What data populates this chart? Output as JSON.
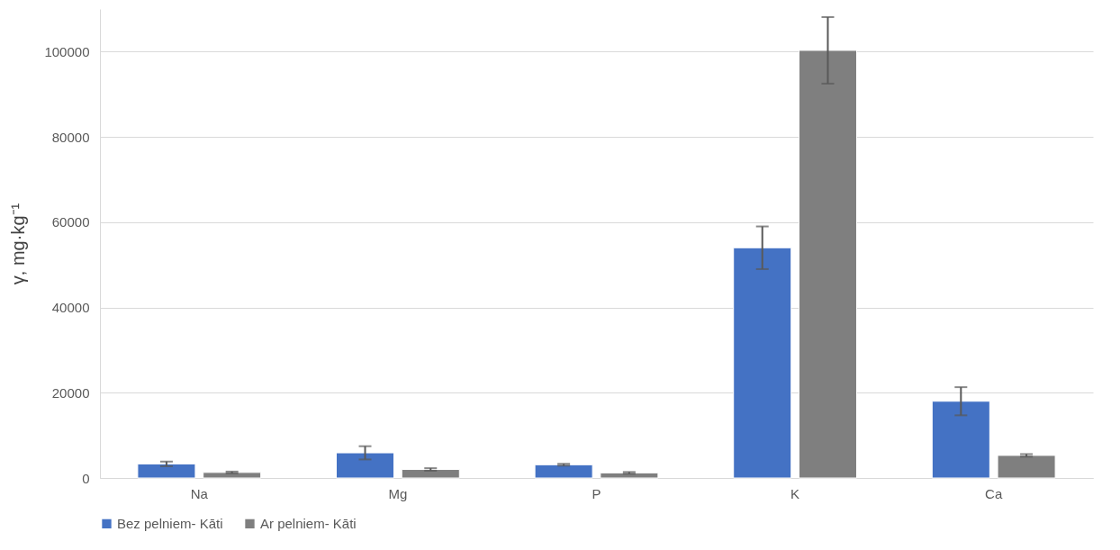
{
  "chart_data": {
    "type": "bar",
    "ylabel": "γ, mg·kg⁻¹",
    "categories": [
      "Na",
      "Mg",
      "P",
      "K",
      "Ca"
    ],
    "series": [
      {
        "name": "Bez pelniem- Kāti",
        "color": "#4472c4",
        "values": [
          3300,
          5900,
          3100,
          54000,
          18000
        ],
        "errors": [
          550,
          1550,
          200,
          5000,
          3300
        ]
      },
      {
        "name": "Ar pelniem- Kāti",
        "color": "#7f7f7f",
        "values": [
          1300,
          2000,
          1200,
          100300,
          5300
        ],
        "errors": [
          200,
          300,
          200,
          7800,
          300
        ]
      }
    ],
    "ylim": [
      0,
      110000
    ],
    "yticks": [
      0,
      20000,
      40000,
      60000,
      80000,
      100000
    ],
    "grid": "y",
    "legend": "bottom"
  }
}
